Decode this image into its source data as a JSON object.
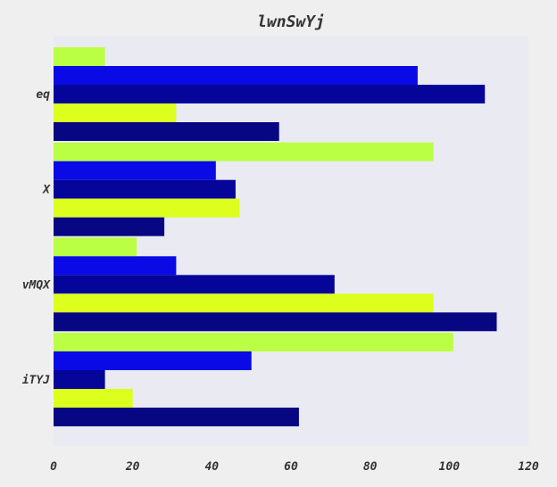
{
  "chart_data": {
    "type": "bar",
    "orientation": "horizontal",
    "title": "lwnSwYj",
    "xlabel": "",
    "ylabel": "",
    "categories": [
      "eq",
      "X",
      "vMQX",
      "iTYJ"
    ],
    "xlim": [
      0,
      120
    ],
    "xticks": [
      "0",
      "20",
      "40",
      "60",
      "80",
      "100",
      "120"
    ],
    "grid": false,
    "series": [
      {
        "color": "#bbff44",
        "values": [
          13,
          96,
          21,
          101
        ]
      },
      {
        "color": "#0a0ae6",
        "values": [
          92,
          41,
          31,
          50
        ]
      },
      {
        "color": "#05059a",
        "values": [
          109,
          46,
          71,
          13
        ]
      },
      {
        "color": "#ddff1e",
        "values": [
          31,
          47,
          96,
          20
        ]
      },
      {
        "color": "#070783",
        "values": [
          57,
          28,
          112,
          62
        ]
      }
    ],
    "colors": {
      "plot_bg": "#eaeaf2",
      "page_bg": "#efefef",
      "text": "#333333"
    }
  }
}
